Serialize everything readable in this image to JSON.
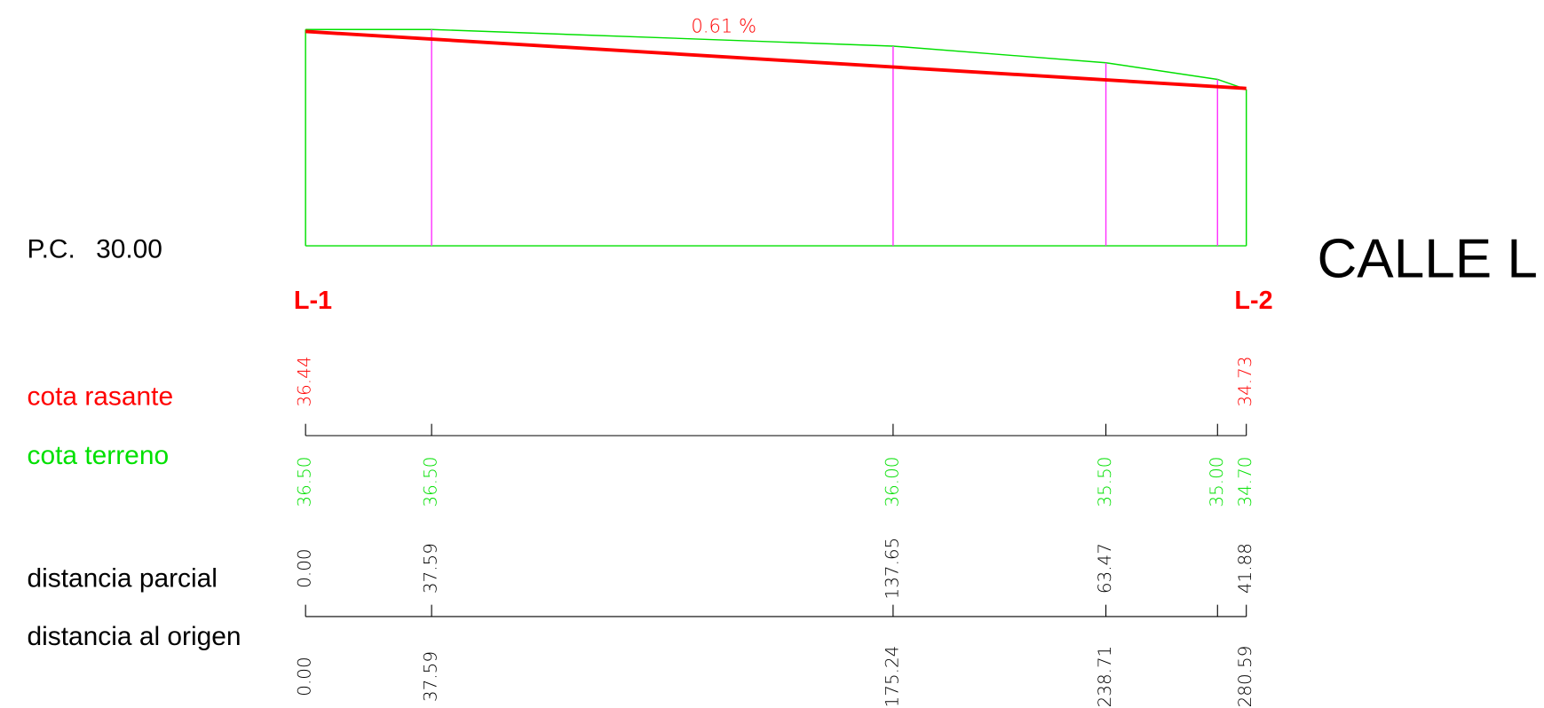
{
  "title": "CALLE L",
  "datum": {
    "prefix": "P.C.",
    "value": 30,
    "label": "30.00"
  },
  "slope_label": "0.61 %",
  "start_label": "L-1",
  "end_label": "L-2",
  "rows": {
    "rasante": "cota rasante",
    "terreno": "cota terreno",
    "parcial": "distancia parcial",
    "origen": "distancia al origen"
  },
  "rasante": [
    {
      "value": 36.44,
      "label": "36.44"
    },
    {
      "value": 34.73,
      "label": "34.73"
    }
  ],
  "stations": [
    {
      "origen": {
        "value": 0,
        "label": "0.00"
      },
      "parcial": {
        "value": 0,
        "label": "0.00"
      },
      "terreno": {
        "value": 36.5,
        "label": "36.50"
      }
    },
    {
      "origen": {
        "value": 37.59,
        "label": "37.59"
      },
      "parcial": {
        "value": 37.59,
        "label": "37.59"
      },
      "terreno": {
        "value": 36.5,
        "label": "36.50"
      }
    },
    {
      "origen": {
        "value": 175.24,
        "label": "175.24"
      },
      "parcial": {
        "value": 137.65,
        "label": "137.65"
      },
      "terreno": {
        "value": 36,
        "label": "36.00"
      }
    },
    {
      "origen": {
        "value": 238.71,
        "label": "238.71"
      },
      "parcial": {
        "value": 63.47,
        "label": "63.47"
      },
      "terreno": {
        "value": 35.5,
        "label": "35.50"
      }
    },
    {
      "origen": {
        "value": 272.0,
        "label": null
      },
      "parcial": {
        "value": null,
        "label": null
      },
      "terreno": {
        "value": 35,
        "label": "35.00"
      }
    },
    {
      "origen": {
        "value": 280.59,
        "label": "280.59"
      },
      "parcial": {
        "value": 41.88,
        "label": "41.88"
      },
      "terreno": {
        "value": 34.7,
        "label": "34.70"
      }
    }
  ]
}
